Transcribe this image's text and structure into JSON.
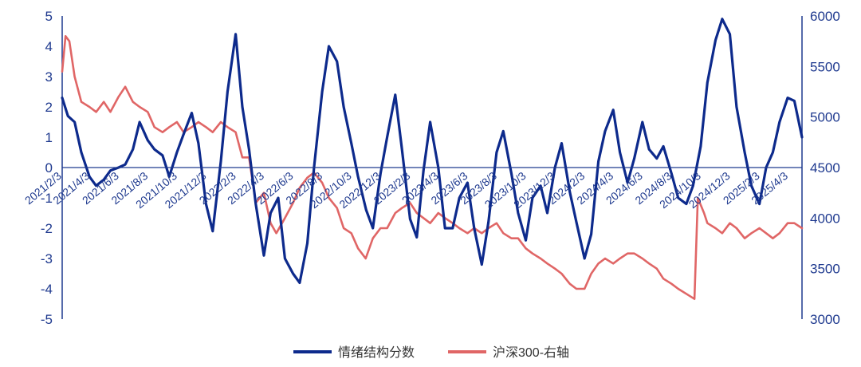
{
  "colors": {
    "axis": "#1f3a8f",
    "sentiment": "#0d2a8c",
    "csi300": "#e06666"
  },
  "chart_data": {
    "type": "line",
    "xlabel": "",
    "ylabel_left": "",
    "ylabel_right": "",
    "y_left_range": [
      -5,
      5
    ],
    "y_left_ticks": [
      "5",
      "4",
      "3",
      "2",
      "1",
      "0",
      "-1",
      "-2",
      "-3",
      "-4",
      "-5"
    ],
    "y_right_range": [
      3000,
      6000
    ],
    "y_right_ticks": [
      "6000",
      "5500",
      "5000",
      "4500",
      "4000",
      "3500",
      "3000"
    ],
    "grid": false,
    "legend_position": "bottom-center",
    "x_tick_labels": [
      "2021/2/3",
      "2021/4/3",
      "2021/6/3",
      "2021/8/3",
      "2021/10/3",
      "2021/12/3",
      "2022/2/3",
      "2022/4/3",
      "2022/6/3",
      "2022/8/3",
      "2022/10/3",
      "2022/12/3",
      "2023/2/3",
      "2023/4/3",
      "2023/6/3",
      "2023/8/3",
      "2023/10/3",
      "2023/12/3",
      "2024/2/3",
      "2024/4/3",
      "2024/6/3",
      "2024/8/3",
      "2024/10/3",
      "2024/12/3",
      "2025/2/3",
      "2025/4/3"
    ],
    "series": [
      {
        "name": "情绪结构分数",
        "axis": "left",
        "x": [
          "2021/2/3",
          "2021/2/15",
          "2021/3/1",
          "2021/3/15",
          "2021/4/1",
          "2021/4/15",
          "2021/5/1",
          "2021/5/15",
          "2021/6/1",
          "2021/6/15",
          "2021/7/1",
          "2021/7/15",
          "2021/8/1",
          "2021/8/15",
          "2021/9/1",
          "2021/9/15",
          "2021/10/1",
          "2021/10/15",
          "2021/11/1",
          "2021/11/15",
          "2021/12/1",
          "2021/12/15",
          "2022/1/1",
          "2022/1/15",
          "2022/2/1",
          "2022/2/15",
          "2022/3/1",
          "2022/3/15",
          "2022/4/1",
          "2022/4/15",
          "2022/5/1",
          "2022/5/15",
          "2022/6/1",
          "2022/6/15",
          "2022/7/1",
          "2022/7/15",
          "2022/8/1",
          "2022/8/15",
          "2022/9/1",
          "2022/9/15",
          "2022/10/1",
          "2022/10/15",
          "2022/11/1",
          "2022/11/15",
          "2022/12/1",
          "2022/12/15",
          "2023/1/1",
          "2023/1/15",
          "2023/2/1",
          "2023/2/15",
          "2023/3/1",
          "2023/3/15",
          "2023/4/1",
          "2023/4/15",
          "2023/5/1",
          "2023/5/15",
          "2023/6/1",
          "2023/6/15",
          "2023/7/1",
          "2023/7/15",
          "2023/8/1",
          "2023/8/15",
          "2023/9/1",
          "2023/9/15",
          "2023/10/1",
          "2023/10/15",
          "2023/11/1",
          "2023/11/15",
          "2023/12/1",
          "2023/12/15",
          "2024/1/1",
          "2024/1/15",
          "2024/2/1",
          "2024/2/15",
          "2024/3/1",
          "2024/3/15",
          "2024/4/1",
          "2024/4/15",
          "2024/5/1",
          "2024/5/15",
          "2024/6/1",
          "2024/6/15",
          "2024/7/1",
          "2024/7/15",
          "2024/8/1",
          "2024/8/15",
          "2024/9/1",
          "2024/9/15",
          "2024/10/1",
          "2024/10/15",
          "2024/11/1",
          "2024/11/15",
          "2024/12/1",
          "2024/12/15",
          "2025/1/1",
          "2025/1/15",
          "2025/2/1",
          "2025/2/15",
          "2025/3/1",
          "2025/3/15",
          "2025/4/1",
          "2025/4/15",
          "2025/5/1"
        ],
        "values": [
          2.3,
          1.7,
          1.5,
          0.5,
          -0.3,
          -0.6,
          -0.4,
          -0.1,
          0.0,
          0.1,
          0.6,
          1.5,
          0.9,
          0.6,
          0.4,
          -0.3,
          0.5,
          1.1,
          1.8,
          0.8,
          -1.2,
          -2.1,
          0.2,
          2.5,
          4.4,
          2.0,
          0.6,
          -1.2,
          -2.9,
          -1.5,
          -1.0,
          -3.0,
          -3.5,
          -3.8,
          -2.5,
          0.0,
          2.5,
          4.0,
          3.5,
          2.0,
          0.8,
          -0.3,
          -1.4,
          -2.0,
          -0.2,
          1.0,
          2.4,
          0.6,
          -1.7,
          -2.3,
          -0.1,
          1.5,
          0.0,
          -2.0,
          -2.0,
          -1.0,
          -0.5,
          -2.0,
          -3.2,
          -1.8,
          0.5,
          1.2,
          -0.2,
          -1.5,
          -2.4,
          -1.0,
          -0.6,
          -1.5,
          0.0,
          0.8,
          -0.8,
          -1.8,
          -3.0,
          -2.2,
          0.2,
          1.2,
          1.9,
          0.5,
          -0.5,
          0.3,
          1.5,
          0.6,
          0.3,
          0.7,
          -0.2,
          -1.0,
          -1.2,
          -0.6,
          0.7,
          2.8,
          4.2,
          4.9,
          4.4,
          2.0,
          0.5,
          -0.6,
          -1.2,
          0.0,
          0.5,
          1.5,
          2.3,
          2.2,
          1.0
        ]
      },
      {
        "name": "沪深300-右轴",
        "axis": "right",
        "x": [
          "2021/2/3",
          "2021/2/10",
          "2021/2/18",
          "2021/3/1",
          "2021/3/15",
          "2021/4/1",
          "2021/4/15",
          "2021/5/1",
          "2021/5/15",
          "2021/6/1",
          "2021/6/15",
          "2021/7/1",
          "2021/7/15",
          "2021/8/1",
          "2021/8/15",
          "2021/9/1",
          "2021/9/15",
          "2021/10/1",
          "2021/10/15",
          "2021/11/1",
          "2021/11/15",
          "2021/12/1",
          "2021/12/15",
          "2022/1/1",
          "2022/1/15",
          "2022/2/1",
          "2022/2/15",
          "2022/3/1",
          "2022/3/15",
          "2022/4/1",
          "2022/4/15",
          "2022/4/27",
          "2022/5/15",
          "2022/6/1",
          "2022/6/15",
          "2022/7/1",
          "2022/7/15",
          "2022/8/1",
          "2022/8/15",
          "2022/9/1",
          "2022/9/15",
          "2022/10/1",
          "2022/10/15",
          "2022/10/31",
          "2022/11/15",
          "2022/12/1",
          "2022/12/15",
          "2023/1/1",
          "2023/1/15",
          "2023/2/1",
          "2023/2/15",
          "2023/3/1",
          "2023/3/15",
          "2023/4/1",
          "2023/4/15",
          "2023/5/1",
          "2023/5/15",
          "2023/6/1",
          "2023/6/15",
          "2023/7/1",
          "2023/7/15",
          "2023/8/1",
          "2023/8/15",
          "2023/9/1",
          "2023/9/15",
          "2023/10/1",
          "2023/10/15",
          "2023/11/1",
          "2023/11/15",
          "2023/12/1",
          "2023/12/15",
          "2024/1/1",
          "2024/1/15",
          "2024/2/1",
          "2024/2/15",
          "2024/3/1",
          "2024/3/15",
          "2024/4/1",
          "2024/4/15",
          "2024/5/1",
          "2024/5/15",
          "2024/6/1",
          "2024/6/15",
          "2024/7/1",
          "2024/7/15",
          "2024/8/1",
          "2024/8/15",
          "2024/9/1",
          "2024/9/18",
          "2024/9/25",
          "2024/10/8",
          "2024/10/15",
          "2024/11/1",
          "2024/11/15",
          "2024/12/1",
          "2024/12/15",
          "2025/1/1",
          "2025/1/15",
          "2025/2/1",
          "2025/2/15",
          "2025/3/1",
          "2025/3/15",
          "2025/4/1",
          "2025/4/15",
          "2025/5/1"
        ],
        "values": [
          5450,
          5800,
          5750,
          5400,
          5150,
          5100,
          5050,
          5150,
          5050,
          5200,
          5300,
          5150,
          5100,
          5050,
          4900,
          4850,
          4900,
          4950,
          4850,
          4900,
          4950,
          4900,
          4850,
          4950,
          4900,
          4850,
          4600,
          4600,
          4150,
          4250,
          3950,
          3850,
          4000,
          4150,
          4300,
          4400,
          4450,
          4350,
          4200,
          4100,
          3900,
          3850,
          3700,
          3600,
          3800,
          3900,
          3900,
          4050,
          4100,
          4150,
          4050,
          4000,
          3950,
          4050,
          4000,
          3950,
          3900,
          3850,
          3900,
          3850,
          3900,
          3950,
          3850,
          3800,
          3800,
          3700,
          3650,
          3600,
          3550,
          3500,
          3450,
          3350,
          3300,
          3300,
          3450,
          3550,
          3600,
          3550,
          3600,
          3650,
          3650,
          3600,
          3550,
          3500,
          3400,
          3350,
          3300,
          3250,
          3200,
          4200,
          4050,
          3950,
          3900,
          3850,
          3950,
          3900,
          3800,
          3850,
          3900,
          3850,
          3800,
          3850,
          3950,
          3950,
          3900
        ]
      }
    ]
  }
}
